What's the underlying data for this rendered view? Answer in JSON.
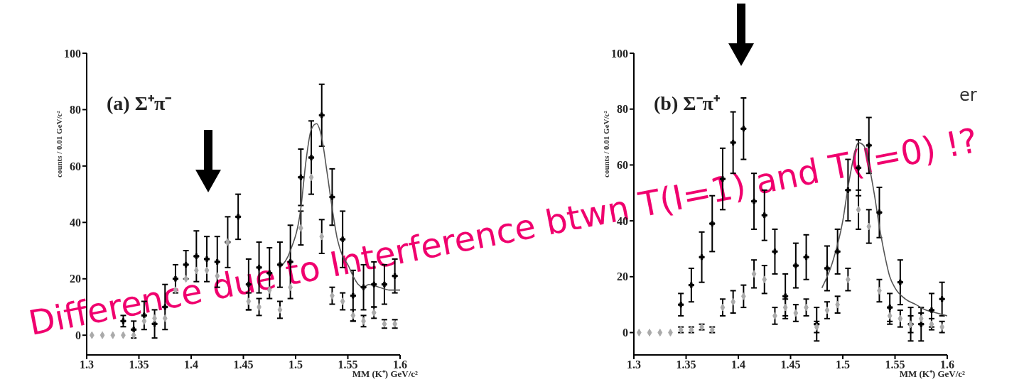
{
  "chart_data": [
    {
      "type": "scatter",
      "title": "(a) Σ⁺π⁻",
      "xlabel": "MM (K⁺)   GeV/c²",
      "ylabel": "counts / 0.01 GeV/c²",
      "xlim": [
        1.3,
        1.6
      ],
      "ylim": [
        -7,
        100
      ],
      "xticks": [
        1.3,
        1.35,
        1.4,
        1.45,
        1.5,
        1.55,
        1.6
      ],
      "yticks": [
        0,
        20,
        40,
        60,
        80,
        100
      ],
      "grid": false,
      "legend": false,
      "annotations": [
        "Difference due to Interference btwn T(I=1) and T(I=0) !?"
      ],
      "series": [
        {
          "color": "#000000",
          "marker": "cross",
          "x": [
            1.335,
            1.345,
            1.355,
            1.365,
            1.375,
            1.385,
            1.395,
            1.405,
            1.415,
            1.425,
            1.435,
            1.445,
            1.455,
            1.465,
            1.475,
            1.485,
            1.495,
            1.505,
            1.515,
            1.525,
            1.535,
            1.545,
            1.555,
            1.565,
            1.575,
            1.585,
            1.595
          ],
          "values": [
            5,
            2,
            7,
            4,
            10,
            20,
            25,
            28,
            27,
            26,
            33,
            42,
            18,
            24,
            22,
            25,
            26,
            56,
            63,
            78,
            49,
            34,
            14,
            17,
            18,
            18,
            21
          ],
          "errors": [
            2,
            3,
            5,
            5,
            8,
            5,
            5,
            9,
            8,
            9,
            9,
            8,
            9,
            9,
            9,
            8,
            13,
            10,
            13,
            11,
            10,
            10,
            9,
            8,
            8,
            7,
            6
          ]
        },
        {
          "color": "#aaaaaa",
          "marker": "diamond",
          "x": [
            1.305,
            1.315,
            1.325,
            1.335,
            1.345,
            1.355,
            1.365,
            1.375,
            1.385,
            1.395,
            1.405,
            1.415,
            1.425,
            1.435,
            1.445,
            1.455,
            1.465,
            1.475,
            1.485,
            1.495,
            1.505,
            1.515,
            1.525,
            1.535,
            1.545,
            1.555,
            1.565,
            1.575,
            1.585,
            1.595
          ],
          "values": [
            0,
            0,
            0,
            0,
            0,
            5,
            6,
            6,
            16,
            20,
            23,
            23,
            21,
            33,
            null,
            12,
            10,
            16,
            9,
            17,
            38,
            56,
            35,
            14,
            12,
            7,
            5,
            8,
            4,
            4
          ],
          "errors": [
            null,
            null,
            null,
            null,
            null,
            null,
            null,
            null,
            null,
            null,
            null,
            null,
            null,
            null,
            null,
            3,
            3,
            null,
            3,
            null,
            6,
            null,
            6,
            3,
            3,
            2,
            2,
            2,
            1.5,
            1.5
          ]
        },
        {
          "type": "line",
          "color": "#555555",
          "marker": "none",
          "x": [
            1.485,
            1.495,
            1.505,
            1.51,
            1.515,
            1.52,
            1.525,
            1.53,
            1.535,
            1.54,
            1.545,
            1.55,
            1.555,
            1.56,
            1.565,
            1.57,
            1.58,
            1.59,
            1.6
          ],
          "values": [
            24,
            30,
            45,
            62,
            73,
            75,
            70,
            58,
            45,
            34,
            28,
            25,
            21,
            18,
            17,
            18,
            17,
            16,
            16
          ]
        }
      ]
    },
    {
      "type": "scatter",
      "title": "(b) Σ⁻π⁺",
      "xlabel": "MM (K⁺)   GeV/c²",
      "ylabel": "counts / 0.01 GeV/c²",
      "xlim": [
        1.3,
        1.6
      ],
      "ylim": [
        -8,
        100
      ],
      "xticks": [
        1.3,
        1.35,
        1.4,
        1.45,
        1.5,
        1.55,
        1.6
      ],
      "yticks": [
        0,
        20,
        40,
        60,
        80,
        100
      ],
      "grid": false,
      "legend": false,
      "annotations": [
        "er"
      ],
      "series": [
        {
          "color": "#000000",
          "marker": "cross",
          "x": [
            1.345,
            1.355,
            1.365,
            1.375,
            1.385,
            1.395,
            1.405,
            1.415,
            1.425,
            1.435,
            1.445,
            1.455,
            1.465,
            1.475,
            1.485,
            1.495,
            1.505,
            1.515,
            1.525,
            1.535,
            1.545,
            1.555,
            1.565,
            1.575,
            1.585,
            1.595
          ],
          "values": [
            10,
            17,
            27,
            39,
            55,
            68,
            73,
            47,
            42,
            29,
            13,
            24,
            27,
            3,
            23,
            29,
            51,
            59,
            67,
            43,
            9,
            18,
            3,
            3,
            8,
            12
          ],
          "errors": [
            4,
            6,
            9,
            10,
            11,
            11,
            11,
            10,
            9,
            8,
            8,
            8,
            8,
            6,
            8,
            8,
            11,
            10,
            10,
            9,
            5,
            8,
            6,
            6,
            6,
            6
          ]
        },
        {
          "color": "#aaaaaa",
          "marker": "diamond",
          "x": [
            1.305,
            1.315,
            1.325,
            1.335,
            1.345,
            1.355,
            1.365,
            1.375,
            1.385,
            1.395,
            1.405,
            1.415,
            1.425,
            1.435,
            1.445,
            1.455,
            1.465,
            1.475,
            1.485,
            1.495,
            1.505,
            1.515,
            1.525,
            1.535,
            1.545,
            1.555,
            1.565,
            1.575,
            1.585,
            1.595
          ],
          "values": [
            0,
            0,
            0,
            0,
            1,
            1,
            2,
            1,
            9,
            11,
            13,
            21,
            19,
            6,
            9,
            7,
            9,
            2,
            8,
            10,
            19,
            44,
            38,
            15,
            6,
            5,
            3,
            5,
            3,
            2
          ],
          "errors": [
            null,
            null,
            null,
            null,
            1,
            1,
            1,
            1,
            3,
            4,
            4,
            5,
            5,
            3,
            3,
            3,
            3,
            2,
            3,
            3,
            4,
            7,
            6,
            4,
            3,
            3,
            3,
            2,
            2,
            2
          ]
        },
        {
          "type": "line",
          "color": "#555555",
          "marker": "none",
          "x": [
            1.48,
            1.49,
            1.5,
            1.505,
            1.51,
            1.515,
            1.52,
            1.525,
            1.53,
            1.535,
            1.54,
            1.545,
            1.55,
            1.56,
            1.57,
            1.58,
            1.59,
            1.6
          ],
          "values": [
            16,
            25,
            40,
            52,
            62,
            68,
            67,
            60,
            50,
            38,
            28,
            20,
            16,
            12,
            10,
            8,
            7,
            6
          ]
        }
      ]
    }
  ]
}
